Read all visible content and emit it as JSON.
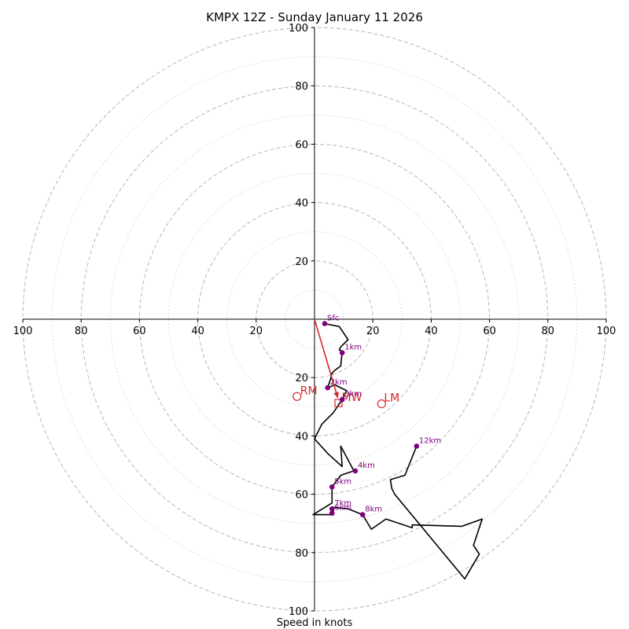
{
  "chart_data": {
    "type": "hodograph",
    "title": "KMPX 12Z - Sunday January 11 2026",
    "xlabel": "Speed in knots",
    "units": "knots",
    "range": [
      -100,
      100
    ],
    "rings_major": [
      20,
      40,
      60,
      80,
      100
    ],
    "rings_minor": [
      10,
      30,
      50,
      70,
      90
    ],
    "tick_labels": {
      "x_left": [
        "100",
        "80",
        "60",
        "40",
        "20"
      ],
      "x_right": [
        "20",
        "40",
        "60",
        "80",
        "100"
      ],
      "y_top": [
        "100",
        "80",
        "60",
        "40",
        "20"
      ],
      "y_bottom": [
        "20",
        "40",
        "60",
        "80",
        "100"
      ]
    },
    "tick_values": {
      "x_left": [
        -100,
        -80,
        -60,
        -40,
        -20
      ],
      "x_right": [
        20,
        40,
        60,
        80,
        100
      ],
      "y_top": [
        100,
        80,
        60,
        40,
        20
      ],
      "y_bottom": [
        -20,
        -40,
        -60,
        -80,
        -100
      ]
    },
    "profile": [
      {
        "u": 3.5,
        "v": -1.5
      },
      {
        "u": 8.5,
        "v": -2.5
      },
      {
        "u": 11.5,
        "v": -7.0
      },
      {
        "u": 9.0,
        "v": -9.5
      },
      {
        "u": 8.5,
        "v": -10.5
      },
      {
        "u": 9.5,
        "v": -11.0
      },
      {
        "u": 9.0,
        "v": -16.0
      },
      {
        "u": 7.0,
        "v": -17.5
      },
      {
        "u": 6.0,
        "v": -18.5
      },
      {
        "u": 5.5,
        "v": -20.5
      },
      {
        "u": 4.5,
        "v": -23.5
      },
      {
        "u": 7.0,
        "v": -22.5
      },
      {
        "u": 11.0,
        "v": -24.5
      },
      {
        "u": 9.5,
        "v": -27.5
      },
      {
        "u": 6.5,
        "v": -32.0
      },
      {
        "u": 2.5,
        "v": -36.0
      },
      {
        "u": 0.0,
        "v": -41.0
      },
      {
        "u": 4.5,
        "v": -46.0
      },
      {
        "u": 9.5,
        "v": -50.5
      },
      {
        "u": 9.0,
        "v": -43.5
      },
      {
        "u": 13.5,
        "v": -52.0
      },
      {
        "u": 9.0,
        "v": -53.5
      },
      {
        "u": 6.0,
        "v": -57.5
      },
      {
        "u": 6.0,
        "v": -63.0
      },
      {
        "u": -0.5,
        "v": -67.0
      },
      {
        "u": 6.5,
        "v": -67.0
      },
      {
        "u": 6.5,
        "v": -64.5
      },
      {
        "u": 11.5,
        "v": -65.0
      },
      {
        "u": 16.5,
        "v": -67.0
      },
      {
        "u": 19.5,
        "v": -72.0
      },
      {
        "u": 24.5,
        "v": -68.5
      },
      {
        "u": 33.5,
        "v": -71.5
      },
      {
        "u": 33.5,
        "v": -70.5
      },
      {
        "u": 50.5,
        "v": -71.0
      },
      {
        "u": 57.5,
        "v": -68.5
      },
      {
        "u": 54.5,
        "v": -77.5
      },
      {
        "u": 56.5,
        "v": -80.5
      },
      {
        "u": 51.5,
        "v": -89.0
      },
      {
        "u": 27.5,
        "v": -60.0
      },
      {
        "u": 26.5,
        "v": -58.0
      },
      {
        "u": 26.0,
        "v": -55.0
      },
      {
        "u": 31.0,
        "v": -53.5
      },
      {
        "u": 35.0,
        "v": -43.5
      }
    ],
    "height_markers": [
      {
        "label": "Sfc",
        "u": 3.5,
        "v": -1.5
      },
      {
        "label": "1km",
        "u": 9.5,
        "v": -11.5
      },
      {
        "label": "2km",
        "u": 4.5,
        "v": -23.5
      },
      {
        "label": "3km",
        "u": 9.5,
        "v": -27.5
      },
      {
        "label": "4km",
        "u": 14.0,
        "v": -52.0
      },
      {
        "label": "5km",
        "u": 6.0,
        "v": -57.5
      },
      {
        "label": "6km",
        "u": 6.0,
        "v": -66.5
      },
      {
        "label": "7km",
        "u": 6.0,
        "v": -65.0
      },
      {
        "label": "8km",
        "u": 16.5,
        "v": -67.0
      },
      {
        "label": "12km",
        "u": 35.0,
        "v": -43.5
      }
    ],
    "storm_motion": {
      "RM": {
        "label": "RM",
        "u": -6.0,
        "v": -26.5
      },
      "LM": {
        "label": "LM",
        "u": 23.0,
        "v": -29.0
      },
      "MW": {
        "label": "MW",
        "u": 8.5,
        "v": -27.0
      },
      "arrow": {
        "u": 8.0,
        "v": -27.0
      }
    },
    "colors": {
      "profile": "#000000",
      "markers": "#800080",
      "motion": "#d62728",
      "grid": "#bdbdbd",
      "grid_minor": "#d0d0d0"
    }
  }
}
